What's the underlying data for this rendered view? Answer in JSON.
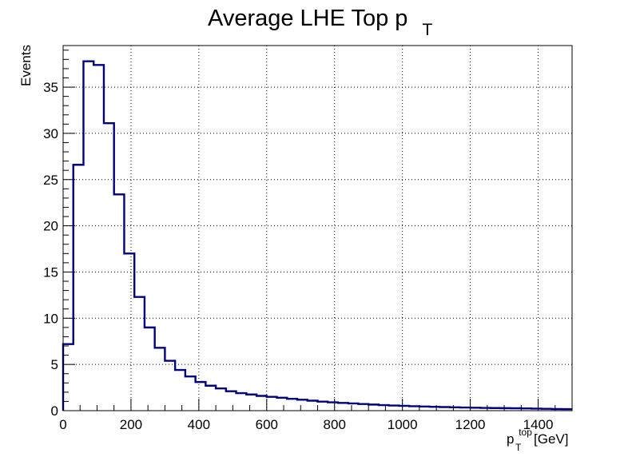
{
  "chart_data": {
    "type": "bar",
    "style": "step-histogram",
    "title_main": "Average LHE Top p",
    "title_sub": "T",
    "ylabel": "Events",
    "xlabel_p": "p",
    "xlabel_sup": "top",
    "xlabel_sub": "T",
    "xlabel_unit": "[GeV]",
    "xlim": [
      0,
      1500
    ],
    "ylim": [
      0,
      39.5
    ],
    "grid": true,
    "line_color": "#000080",
    "bin_edges": [
      0,
      30,
      60,
      90,
      120,
      150,
      180,
      210,
      240,
      270,
      300,
      330,
      360,
      390,
      420,
      450,
      480,
      510,
      540,
      570,
      600,
      630,
      660,
      690,
      720,
      750,
      780,
      810,
      840,
      870,
      900,
      930,
      960,
      990,
      1020,
      1050,
      1080,
      1110,
      1140,
      1170,
      1200,
      1230,
      1260,
      1290,
      1320,
      1350,
      1380,
      1410,
      1440,
      1470,
      1500
    ],
    "values": [
      7.2,
      26.6,
      37.8,
      37.4,
      31.1,
      23.4,
      17.0,
      12.3,
      9.0,
      6.8,
      5.4,
      4.4,
      3.7,
      3.1,
      2.7,
      2.4,
      2.1,
      1.9,
      1.75,
      1.6,
      1.5,
      1.4,
      1.28,
      1.18,
      1.08,
      0.98,
      0.9,
      0.84,
      0.78,
      0.72,
      0.66,
      0.6,
      0.56,
      0.52,
      0.48,
      0.45,
      0.42,
      0.39,
      0.36,
      0.34,
      0.32,
      0.3,
      0.28,
      0.27,
      0.26,
      0.24,
      0.22,
      0.2,
      0.18,
      0.17
    ],
    "x_ticks": [
      0,
      200,
      400,
      600,
      800,
      1000,
      1200,
      1400
    ],
    "y_ticks": [
      0,
      5,
      10,
      15,
      20,
      25,
      30,
      35
    ]
  }
}
